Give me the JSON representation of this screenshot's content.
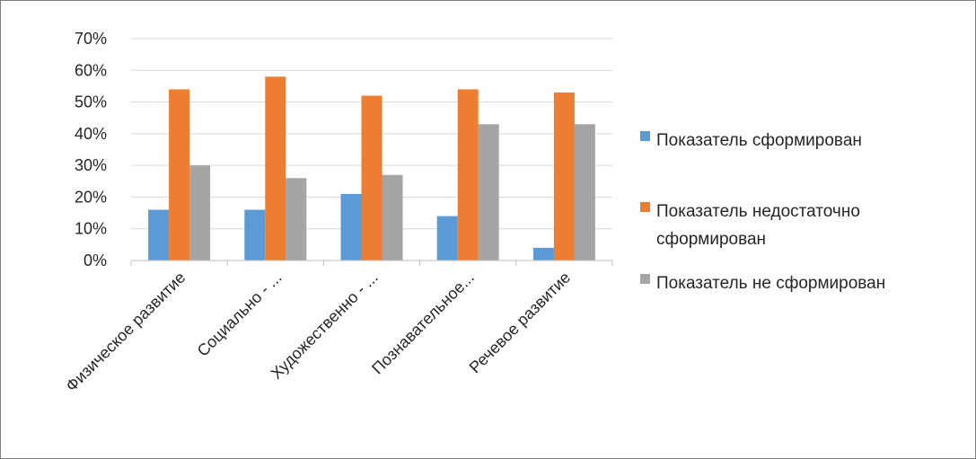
{
  "chart_data": {
    "type": "bar",
    "categories": [
      "Физическое развитие",
      "Социально - ...",
      "Художественно - ...",
      "Познавательное...",
      "Речевое развитие"
    ],
    "series": [
      {
        "name": "Показатель сформирован",
        "values": [
          16,
          16,
          21,
          14,
          4
        ],
        "color": "#5b9bd5"
      },
      {
        "name": "Показатель недостаточно сформирован",
        "legend_lines": [
          "Показатель недостаточно",
          "сформирован"
        ],
        "values": [
          54,
          58,
          52,
          54,
          53
        ],
        "color": "#ed7d31"
      },
      {
        "name": "Показатель не сформирован",
        "values": [
          30,
          26,
          27,
          43,
          43
        ],
        "color": "#a5a5a5"
      }
    ],
    "ylim": [
      0,
      70
    ],
    "yticks": [
      "0%",
      "10%",
      "20%",
      "30%",
      "40%",
      "50%",
      "60%",
      "70%"
    ],
    "grid": true,
    "legend_position": "right"
  }
}
